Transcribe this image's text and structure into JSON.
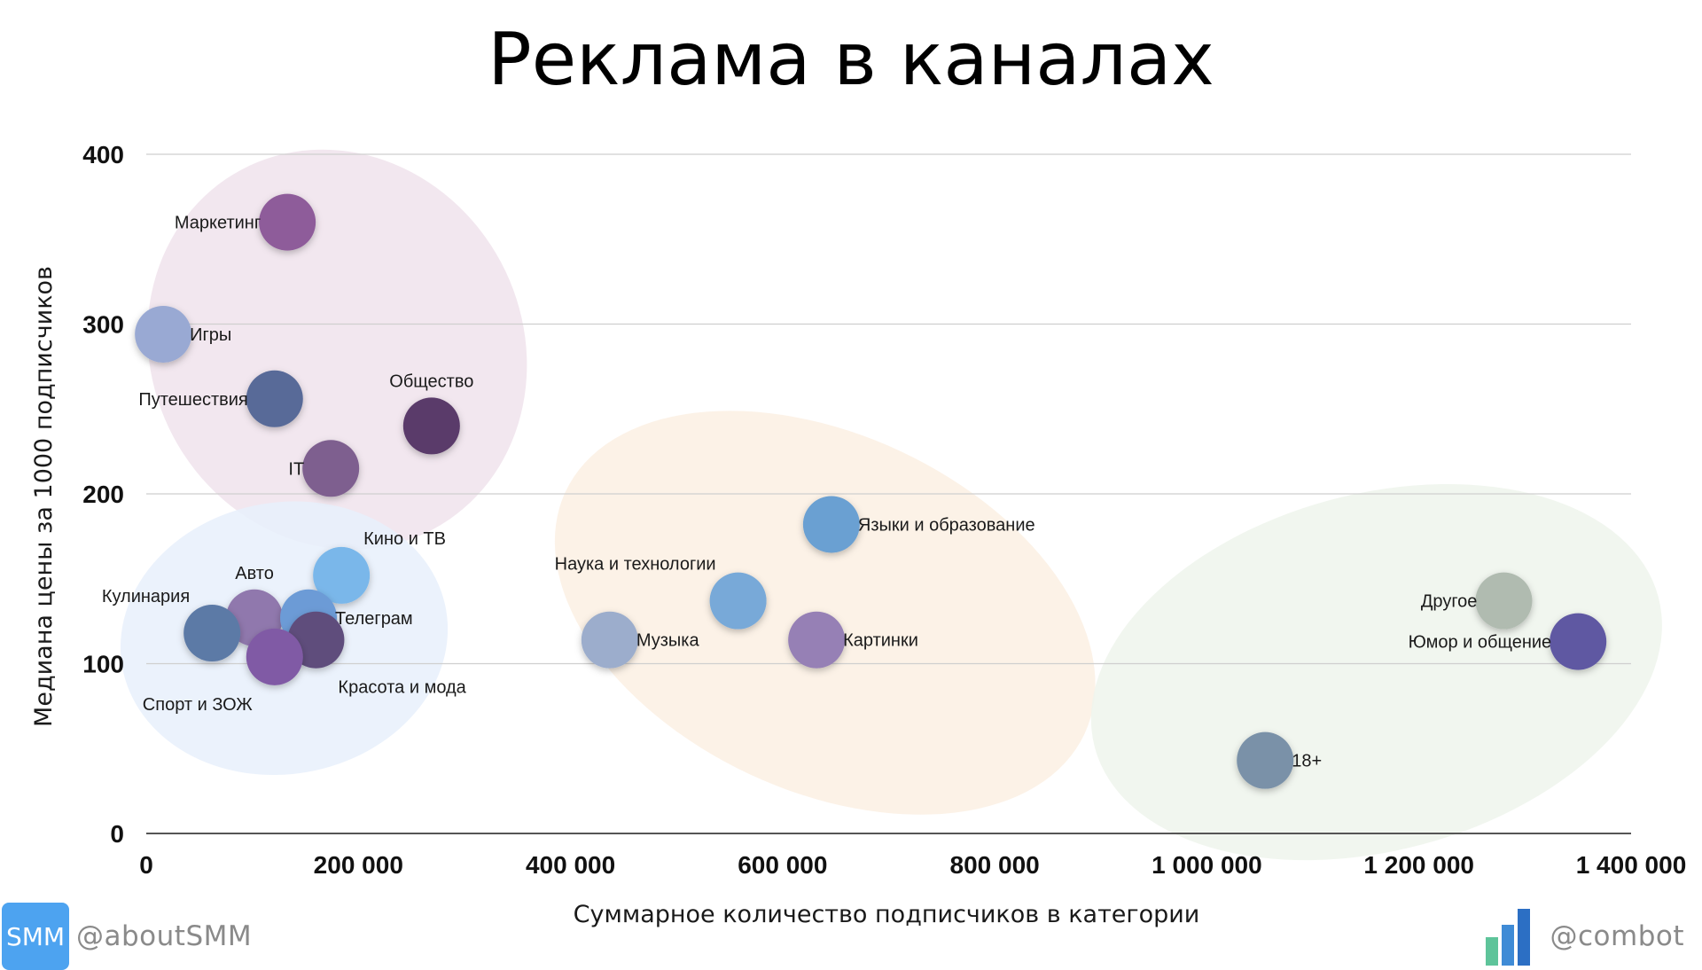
{
  "title": "Реклама в каналах",
  "chart_data": {
    "type": "scatter",
    "title": "Реклама в каналах",
    "xlabel": "Суммарное количество подписчиков в категории",
    "ylabel": "Медиана цены за 1000 подписчиков",
    "xlim": [
      0,
      1400000
    ],
    "ylim": [
      0,
      400
    ],
    "x_ticks": [
      {
        "value": 0,
        "label": "0"
      },
      {
        "value": 200000,
        "label": "200 000"
      },
      {
        "value": 400000,
        "label": "400 000"
      },
      {
        "value": 600000,
        "label": "600 000"
      },
      {
        "value": 800000,
        "label": "800 000"
      },
      {
        "value": 1000000,
        "label": "1 000 000"
      },
      {
        "value": 1200000,
        "label": "1 200 000"
      },
      {
        "value": 1400000,
        "label": "1 400 000"
      }
    ],
    "y_ticks": [
      {
        "value": 0,
        "label": "0"
      },
      {
        "value": 100,
        "label": "100"
      },
      {
        "value": 200,
        "label": "200"
      },
      {
        "value": 300,
        "label": "300"
      },
      {
        "value": 400,
        "label": "400"
      }
    ],
    "grid": "horizontal",
    "points": [
      {
        "label": "Маркетинг",
        "x": 133000,
        "y": 360,
        "color": "#8e5b9a",
        "label_side": "left"
      },
      {
        "label": "Игры",
        "x": 16000,
        "y": 294,
        "color": "#99a9d3",
        "label_side": "right"
      },
      {
        "label": "Путешествия",
        "x": 121000,
        "y": 256,
        "color": "#586a98",
        "label_side": "left"
      },
      {
        "label": "Общество",
        "x": 269000,
        "y": 240,
        "color": "#5a3b6a",
        "label_side": "above"
      },
      {
        "label": "IT",
        "x": 174000,
        "y": 215,
        "color": "#7e5f8f",
        "label_side": "left"
      },
      {
        "label": "Языки и образование",
        "x": 646000,
        "y": 182,
        "color": "#6ba0d2",
        "label_side": "right"
      },
      {
        "label": "Кино и ТВ",
        "x": 184000,
        "y": 152,
        "color": "#7ab7ea",
        "label_side": "above-right"
      },
      {
        "label": "Наука и технологии",
        "x": 558000,
        "y": 137,
        "color": "#78a9d8",
        "label_side": "above-left"
      },
      {
        "label": "Авто",
        "x": 102000,
        "y": 127,
        "color": "#9078ad",
        "label_side": "above"
      },
      {
        "label": "Телеграм",
        "x": 153000,
        "y": 127,
        "color": "#6c9bd6",
        "label_side": "right"
      },
      {
        "label": "Кулинария",
        "x": 62000,
        "y": 118,
        "color": "#5c7aa6",
        "label_side": "above-left"
      },
      {
        "label": "Красота и мода",
        "x": 160000,
        "y": 114,
        "color": "#5e4d7c",
        "label_side": "below-right"
      },
      {
        "label": "Спорт и ЗОЖ",
        "x": 121000,
        "y": 104,
        "color": "#805aa5",
        "label_side": "below-left"
      },
      {
        "label": "Музыка",
        "x": 437000,
        "y": 114,
        "color": "#9cadcc",
        "label_side": "right"
      },
      {
        "label": "Картинки",
        "x": 632000,
        "y": 114,
        "color": "#9680b5",
        "label_side": "right"
      },
      {
        "label": "Другое",
        "x": 1280000,
        "y": 137,
        "color": "#b0bbb0",
        "label_side": "left"
      },
      {
        "label": "Юмор и общение",
        "x": 1350000,
        "y": 113,
        "color": "#5f59a2",
        "label_side": "left"
      },
      {
        "label": "18+",
        "x": 1055000,
        "y": 43,
        "color": "#7a91a8",
        "label_side": "right"
      }
    ],
    "groups": [
      {
        "center": [
          180000,
          285
        ],
        "radii": [
          175000,
          120
        ],
        "angle": -28,
        "color": "#f0e3ec"
      },
      {
        "center": [
          130000,
          115
        ],
        "radii": [
          155000,
          80
        ],
        "angle": -10,
        "color": "#e8f0fb"
      },
      {
        "center": [
          640000,
          130
        ],
        "radii": [
          270000,
          105
        ],
        "angle": 25,
        "color": "#fcf0e3"
      },
      {
        "center": [
          1160000,
          95
        ],
        "radii": [
          275000,
          105
        ],
        "angle": -15,
        "color": "#eff5ec"
      }
    ]
  },
  "footer": {
    "left_logo_text": "SMM",
    "left_handle": "@aboutSMM",
    "right_handle": "@combot",
    "combot_colors": [
      "#5ec49a",
      "#3f8bd6",
      "#2c6fc4"
    ]
  }
}
